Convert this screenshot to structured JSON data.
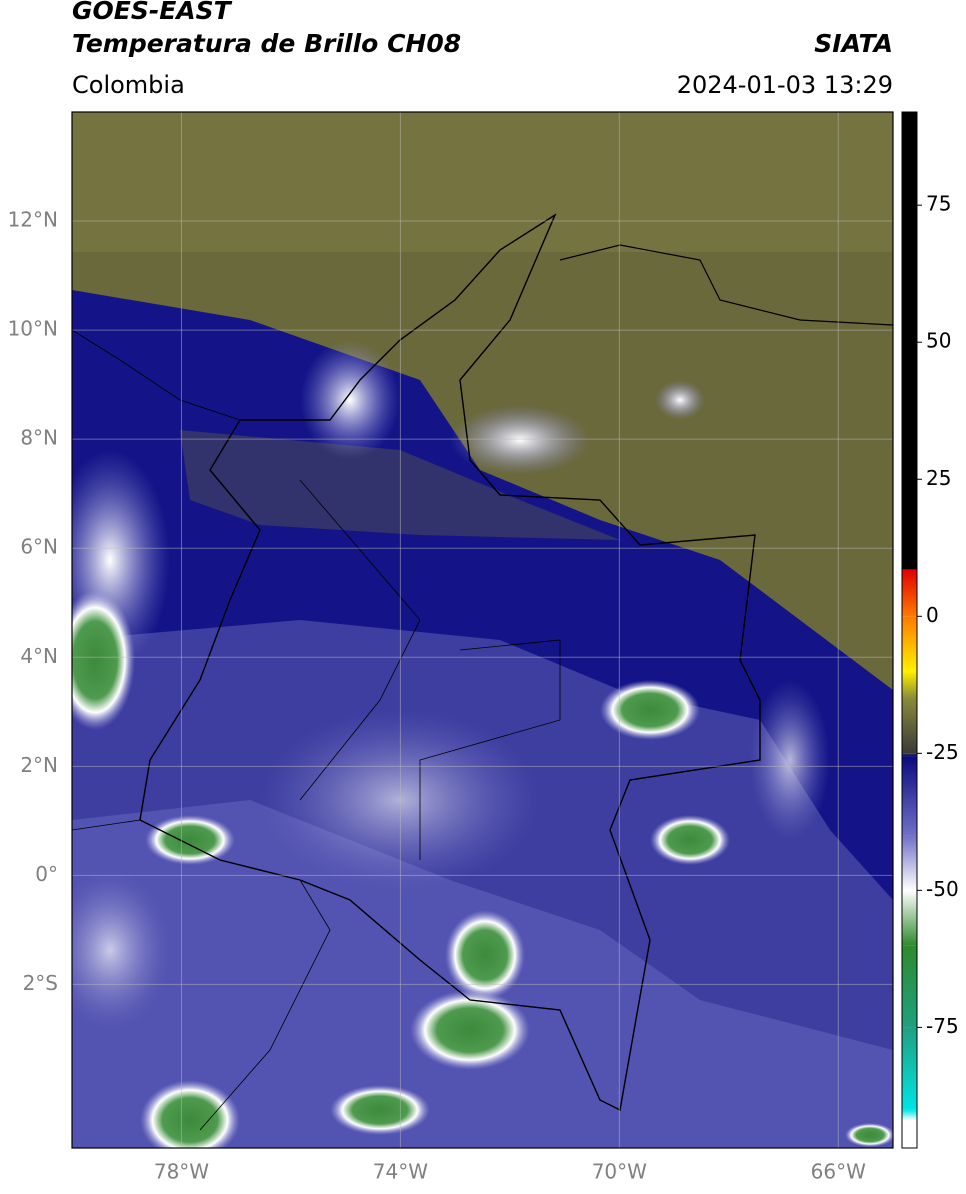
{
  "chart_data": {
    "type": "map",
    "title": "GOES-EAST",
    "subtitle": "Temperatura de Brillo CH08",
    "source": "SIATA",
    "region": "Colombia",
    "datetime": "2024-01-03 13:29",
    "xlim": [
      -80,
      -65
    ],
    "ylim": [
      -5,
      14
    ],
    "xticks": [
      {
        "value": -78,
        "label": "78°W"
      },
      {
        "value": -74,
        "label": "74°W"
      },
      {
        "value": -70,
        "label": "70°W"
      },
      {
        "value": -66,
        "label": "66°W"
      }
    ],
    "yticks": [
      {
        "value": 12,
        "label": "12°N"
      },
      {
        "value": 10,
        "label": "10°N"
      },
      {
        "value": 8,
        "label": "8°N"
      },
      {
        "value": 6,
        "label": "6°N"
      },
      {
        "value": 4,
        "label": "4°N"
      },
      {
        "value": 2,
        "label": "2°N"
      },
      {
        "value": 0,
        "label": "0°"
      },
      {
        "value": -2,
        "label": "2°S"
      }
    ],
    "grid": true,
    "colorbar": {
      "lim": [
        -97,
        92
      ],
      "ticks": [
        75,
        50,
        25,
        0,
        -25,
        -50,
        -75
      ],
      "colormap": [
        {
          "value": 92,
          "color": "#000000"
        },
        {
          "value": 8.5,
          "color": "#000000"
        },
        {
          "value": 8.5,
          "color": "#e00000"
        },
        {
          "value": 0,
          "color": "#ff7a00"
        },
        {
          "value": -10,
          "color": "#fff000"
        },
        {
          "value": -15,
          "color": "#8a8a3a"
        },
        {
          "value": -25,
          "color": "#3a3a3a"
        },
        {
          "value": -25.5,
          "color": "#0a0a80"
        },
        {
          "value": -40,
          "color": "#7070c8"
        },
        {
          "value": -50,
          "color": "#ffffff"
        },
        {
          "value": -60,
          "color": "#2e8b2e"
        },
        {
          "value": -75,
          "color": "#20a080"
        },
        {
          "value": -90,
          "color": "#00e5e5"
        },
        {
          "value": -92,
          "color": "#ffffff"
        },
        {
          "value": -97,
          "color": "#ffffff"
        }
      ]
    }
  }
}
